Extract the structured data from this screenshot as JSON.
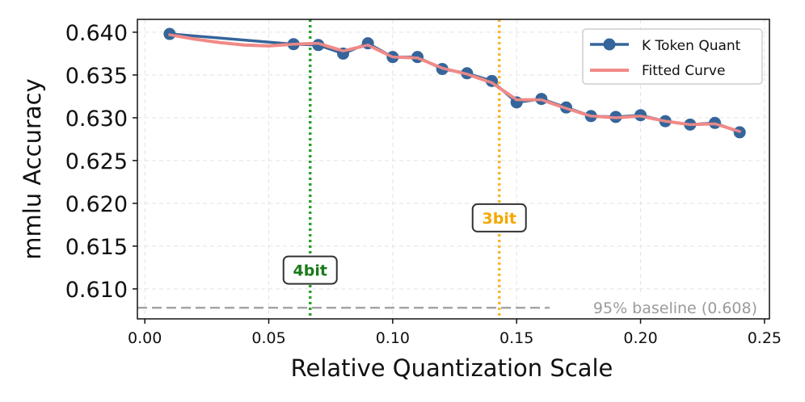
{
  "chart_data": {
    "type": "line",
    "title": "",
    "xlabel": "Relative Quantization Scale",
    "ylabel": "mmlu Accuracy",
    "xlim": [
      -0.003,
      0.252
    ],
    "ylim": [
      0.6065,
      0.6415
    ],
    "x_ticks": [
      0.0,
      0.05,
      0.1,
      0.15,
      0.2,
      0.25
    ],
    "x_tick_labels": [
      "0.00",
      "0.05",
      "0.10",
      "0.15",
      "0.20",
      "0.25"
    ],
    "y_ticks": [
      0.61,
      0.615,
      0.62,
      0.625,
      0.63,
      0.635,
      0.64
    ],
    "y_tick_labels": [
      "0.610",
      "0.615",
      "0.620",
      "0.625",
      "0.630",
      "0.635",
      "0.640"
    ],
    "grid": true,
    "legend_position": "top-right",
    "series": [
      {
        "name": "K Token Quant",
        "color": "#35659a",
        "style": "line-markers",
        "x": [
          0.01,
          0.06,
          0.07,
          0.08,
          0.09,
          0.1,
          0.11,
          0.12,
          0.13,
          0.14,
          0.15,
          0.16,
          0.17,
          0.18,
          0.19,
          0.2,
          0.21,
          0.22,
          0.23,
          0.24
        ],
        "values": [
          0.6398,
          0.6386,
          0.6385,
          0.6375,
          0.6387,
          0.6371,
          0.6371,
          0.6357,
          0.6352,
          0.6343,
          0.6318,
          0.6322,
          0.6312,
          0.6302,
          0.6301,
          0.6303,
          0.6296,
          0.6292,
          0.6294,
          0.6283
        ]
      },
      {
        "name": "Fitted Curve",
        "color": "#f08a87",
        "style": "line",
        "x": [
          0.01,
          0.02,
          0.03,
          0.04,
          0.05,
          0.06,
          0.07,
          0.08,
          0.09,
          0.1,
          0.11,
          0.12,
          0.13,
          0.14,
          0.15,
          0.16,
          0.17,
          0.18,
          0.19,
          0.2,
          0.21,
          0.22,
          0.23,
          0.24
        ],
        "values": [
          0.6397,
          0.6392,
          0.6388,
          0.6385,
          0.6384,
          0.6386,
          0.6387,
          0.6378,
          0.6385,
          0.6371,
          0.637,
          0.6358,
          0.6351,
          0.6341,
          0.6321,
          0.6321,
          0.6311,
          0.6302,
          0.63,
          0.6302,
          0.6296,
          0.6292,
          0.6293,
          0.6284
        ]
      }
    ],
    "reference_lines": [
      {
        "orientation": "vertical",
        "x": 0.0667,
        "label": "4bit",
        "color": "#2ca02c",
        "style": "dotted",
        "label_y": 0.6122
      },
      {
        "orientation": "vertical",
        "x": 0.143,
        "label": "3bit",
        "color": "#f8b62d",
        "style": "dotted",
        "label_y": 0.6183
      },
      {
        "orientation": "horizontal",
        "y": 0.6078,
        "label": "95% baseline (0.608)",
        "color": "#a6a6a6",
        "style": "dashed"
      }
    ]
  }
}
